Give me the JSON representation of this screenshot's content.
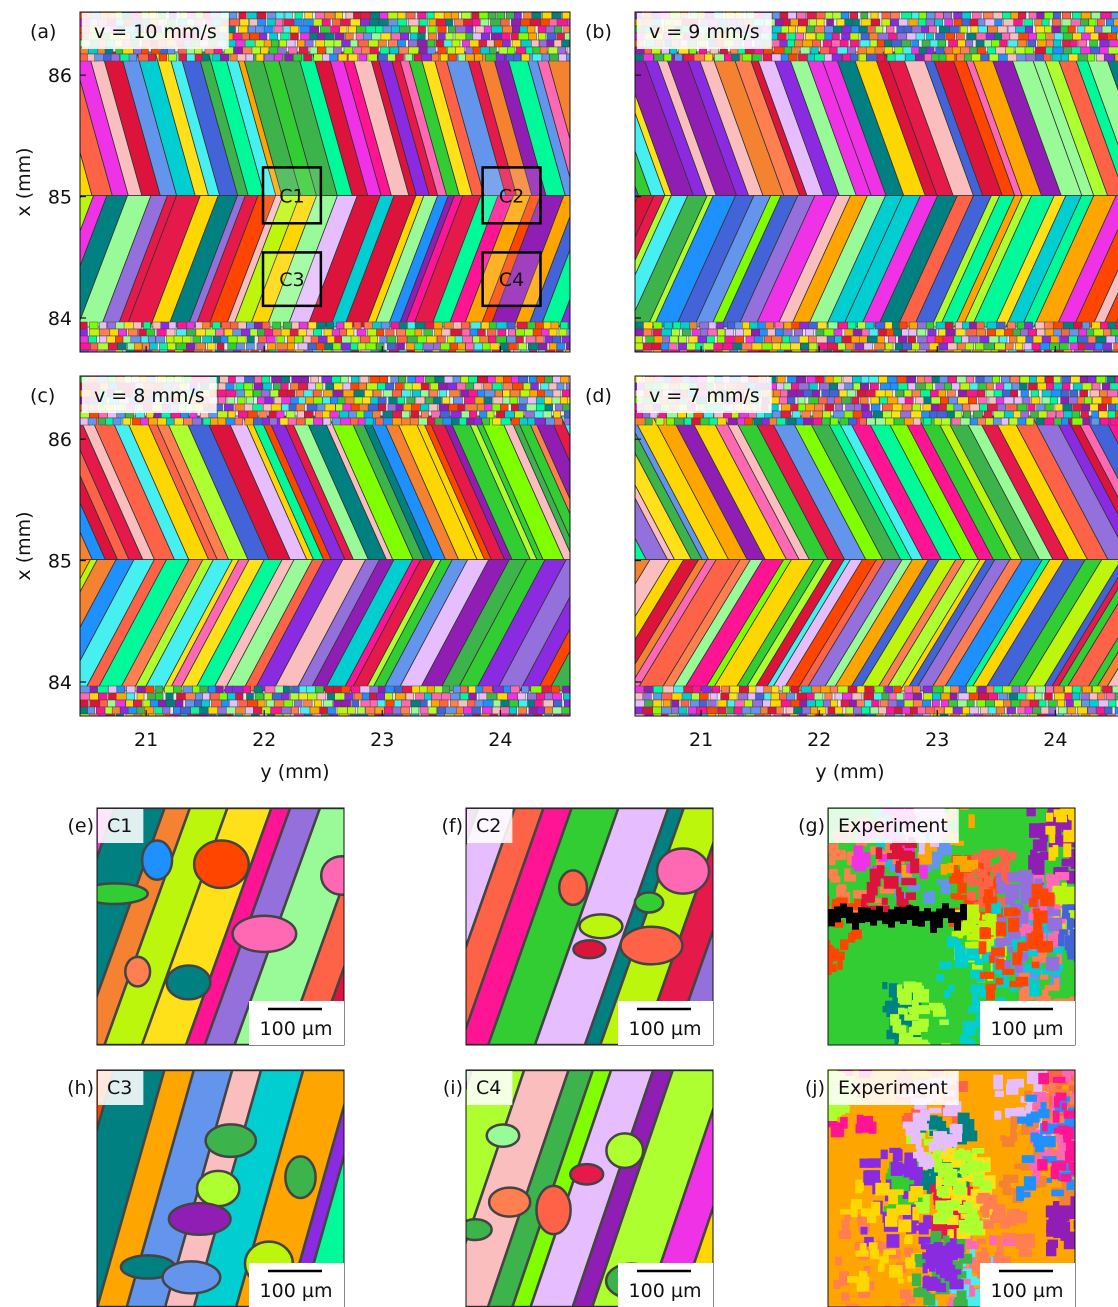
{
  "figure": {
    "xlabel": "y (mm)",
    "ylabel": "x (mm)",
    "xlim": [
      20.44,
      24.59
    ],
    "ylim": [
      83.72,
      86.52
    ],
    "xticks": [
      21,
      22,
      23,
      24
    ],
    "yticks": [
      84,
      85,
      86
    ],
    "panels": [
      {
        "label": "(a)",
        "title": "v = 10 mm/s",
        "regions": [
          {
            "label": "C1",
            "xrange": [
              21.99,
              22.48
            ],
            "yrange": [
              84.78,
              85.24
            ]
          },
          {
            "label": "C2",
            "xrange": [
              23.85,
              24.34
            ],
            "yrange": [
              84.78,
              85.24
            ]
          },
          {
            "label": "C3",
            "xrange": [
              21.99,
              22.48
            ],
            "yrange": [
              84.1,
              84.54
            ]
          },
          {
            "label": "C4",
            "xrange": [
              23.85,
              24.34
            ],
            "yrange": [
              84.1,
              84.54
            ]
          }
        ]
      },
      {
        "label": "(b)",
        "title": "v = 9 mm/s"
      },
      {
        "label": "(c)",
        "title": "v = 8 mm/s"
      },
      {
        "label": "(d)",
        "title": "v = 7 mm/s"
      }
    ],
    "insets": [
      {
        "label": "(e)",
        "title": "C1",
        "scale_bar": "100 µm"
      },
      {
        "label": "(f)",
        "title": "C2",
        "scale_bar": "100 µm"
      },
      {
        "label": "(g)",
        "title": "Experiment",
        "scale_bar": "100 µm"
      },
      {
        "label": "(h)",
        "title": "C3",
        "scale_bar": "100 µm"
      },
      {
        "label": "(i)",
        "title": "C4",
        "scale_bar": "100 µm"
      },
      {
        "label": "(j)",
        "title": "Experiment",
        "scale_bar": "100 µm"
      }
    ]
  }
}
